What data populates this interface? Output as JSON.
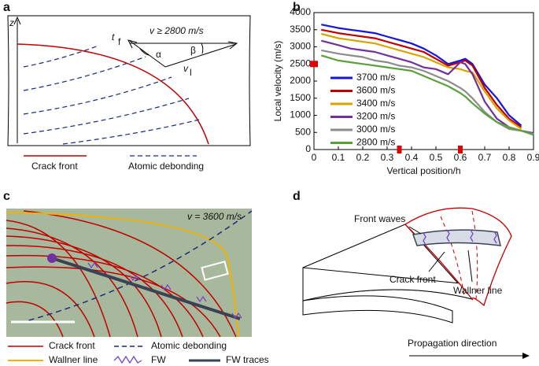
{
  "panels": {
    "a": {
      "letter": "a",
      "axis": "z",
      "speed": "v ≥ 2800 m/s",
      "tf": "t",
      "tf_sub": "f",
      "alpha": "α",
      "beta": "β",
      "vl": "v",
      "vl_sub": "l",
      "legend": [
        "Crack front",
        "Atomic debonding"
      ]
    },
    "c": {
      "letter": "c",
      "speed": "v = 3600 m/s",
      "legend": [
        "Crack front",
        "Atomic debonding",
        "Wallner line",
        "FW",
        "FW traces"
      ]
    },
    "d": {
      "letter": "d",
      "labels": [
        "Front waves",
        "Crack front",
        "Wallner line",
        "Propagation direction"
      ]
    }
  },
  "chart_data": {
    "type": "line",
    "panel": "b",
    "xlabel": "Vertical position/h",
    "ylabel": "Local velocity (m/s)",
    "x": [
      0.03,
      0.1,
      0.15,
      0.2,
      0.25,
      0.3,
      0.35,
      0.4,
      0.45,
      0.5,
      0.55,
      0.6,
      0.62,
      0.65,
      0.7,
      0.75,
      0.8,
      0.85,
      0.9
    ],
    "series": [
      {
        "name": "3700 m/s",
        "color": "#1515e0",
        "values": [
          3650,
          3550,
          3500,
          3450,
          3400,
          3300,
          3200,
          3100,
          2950,
          2750,
          2500,
          2600,
          2650,
          2500,
          1900,
          1500,
          1000,
          700,
          null
        ]
      },
      {
        "name": "3600 m/s",
        "color": "#c00000",
        "values": [
          3500,
          3400,
          3350,
          3300,
          3250,
          3150,
          3050,
          2950,
          2850,
          2650,
          2450,
          2550,
          2600,
          2450,
          1800,
          1300,
          900,
          650,
          null
        ]
      },
      {
        "name": "3400 m/s",
        "color": "#d9a400",
        "values": [
          3380,
          3250,
          3200,
          3150,
          3100,
          3000,
          2900,
          2800,
          2700,
          2550,
          2400,
          2350,
          2300,
          2250,
          1700,
          1200,
          850,
          600,
          null
        ]
      },
      {
        "name": "3200 m/s",
        "color": "#7030a0",
        "values": [
          3180,
          3050,
          2950,
          2900,
          2850,
          2750,
          2650,
          2550,
          2400,
          2350,
          2200,
          2550,
          2500,
          2200,
          1400,
          900,
          650,
          550,
          480
        ]
      },
      {
        "name": "3000 m/s",
        "color": "#8c8c8c",
        "values": [
          2900,
          2800,
          2750,
          2700,
          2600,
          2550,
          2450,
          2400,
          2300,
          2150,
          2000,
          1800,
          1700,
          1500,
          1100,
          800,
          600,
          550,
          450
        ]
      },
      {
        "name": "2800 m/s",
        "color": "#5aa03c",
        "values": [
          2750,
          2600,
          2550,
          2500,
          2450,
          2400,
          2350,
          2300,
          2150,
          2000,
          1850,
          1650,
          1550,
          1350,
          1050,
          800,
          650,
          550,
          430
        ]
      }
    ],
    "xlim": [
      0,
      0.9
    ],
    "ylim": [
      0,
      4000
    ],
    "xticks": [
      0,
      0.1,
      0.2,
      0.3,
      0.4,
      0.5,
      0.6,
      0.7,
      0.8,
      0.9
    ],
    "yticks": [
      0,
      500,
      1000,
      1500,
      2000,
      2500,
      3000,
      3500,
      4000
    ],
    "marker_color": "#e00000",
    "x_markers": [
      0.35,
      0.6
    ],
    "y_markers": [
      2500
    ]
  }
}
